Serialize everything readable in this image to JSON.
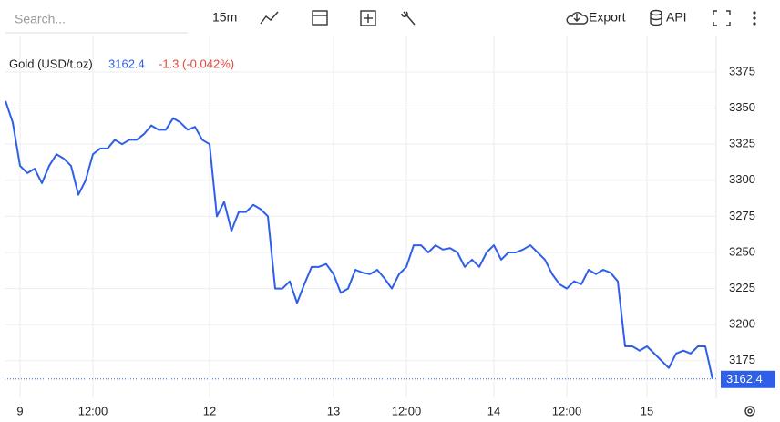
{
  "toolbar": {
    "search_placeholder": "Search...",
    "interval": "15m",
    "export": "Export",
    "api": "API"
  },
  "chart_data": {
    "type": "line",
    "title": "Gold (USD/t.oz)",
    "last": 3162.4,
    "change": "-1.3 (-0.042%)",
    "change_color": "#e0463b",
    "categories": [
      null,
      null,
      "9",
      null,
      null,
      null,
      null,
      null,
      null,
      null,
      null,
      null,
      "12:00",
      null,
      null,
      null,
      null,
      null,
      null,
      null,
      null,
      null,
      null,
      null,
      null,
      null,
      null,
      null,
      "12",
      null,
      null,
      null,
      null,
      null,
      null,
      null,
      null,
      null,
      null,
      null,
      null,
      null,
      null,
      null,
      null,
      "13",
      null,
      null,
      null,
      null,
      null,
      null,
      null,
      null,
      null,
      "12:00",
      null,
      null,
      null,
      null,
      null,
      null,
      null,
      null,
      null,
      null,
      null,
      "14",
      null,
      null,
      null,
      null,
      null,
      null,
      null,
      null,
      null,
      "12:00",
      null,
      null,
      null,
      null,
      null,
      null,
      null,
      null,
      null,
      null,
      "15",
      null,
      null,
      null,
      null,
      null,
      null,
      null,
      null,
      null
    ],
    "series": [
      {
        "name": "Gold (USD/t.oz)",
        "color": "#2f5fe8",
        "values": [
          3355,
          3340,
          3310,
          3305,
          3308,
          3298,
          3310,
          3318,
          3315,
          3310,
          3290,
          3300,
          3318,
          3322,
          3322,
          3328,
          3325,
          3328,
          3328,
          3332,
          3338,
          3335,
          3335,
          3343,
          3340,
          3335,
          3337,
          3328,
          3325,
          3275,
          3285,
          3265,
          3278,
          3278,
          3283,
          3280,
          3275,
          3225,
          3225,
          3230,
          3215,
          3228,
          3240,
          3240,
          3242,
          3235,
          3222,
          3225,
          3238,
          3236,
          3235,
          3238,
          3232,
          3225,
          3235,
          3240,
          3255,
          3255,
          3250,
          3255,
          3252,
          3253,
          3250,
          3240,
          3245,
          3240,
          3250,
          3255,
          3245,
          3250,
          3250,
          3252,
          3255,
          3250,
          3245,
          3235,
          3228,
          3225,
          3230,
          3228,
          3238,
          3235,
          3238,
          3236,
          3230,
          3185,
          3185,
          3182,
          3185,
          3180,
          3175,
          3170,
          3180,
          3182,
          3180,
          3185,
          3185,
          3162.4
        ]
      }
    ],
    "ylim": [
      3149,
      3399.6
    ],
    "yticks": [
      3175,
      3200,
      3225,
      3250,
      3275,
      3300,
      3325,
      3350,
      3375
    ],
    "grid": true
  }
}
